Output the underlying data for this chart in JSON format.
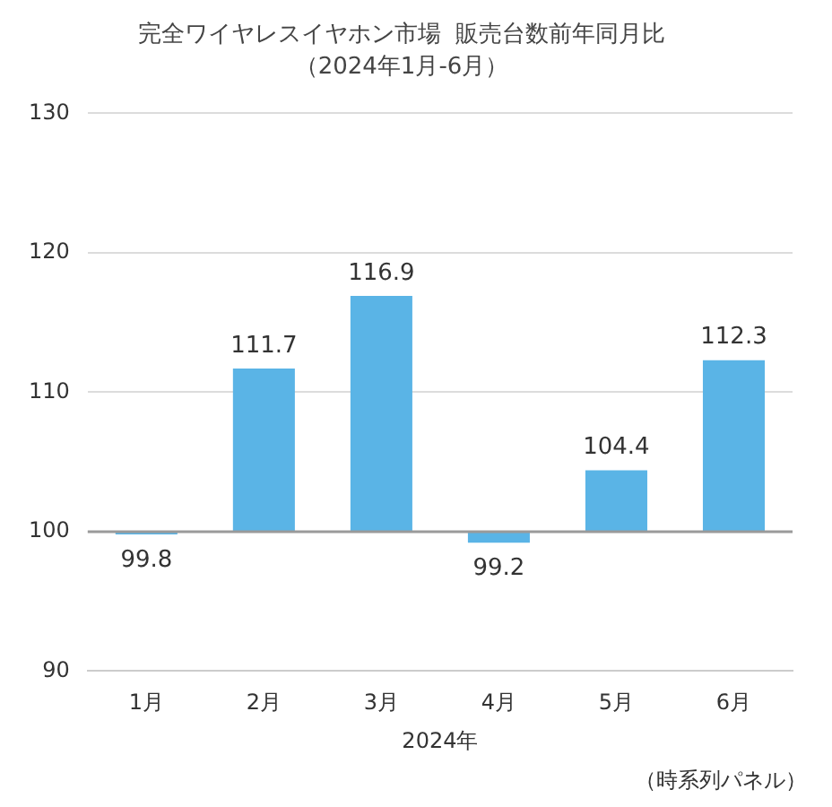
{
  "chart_data": {
    "type": "bar",
    "title": "完全ワイヤレスイヤホン市場  販売台数前年同月比",
    "subtitle": "（2024年1月-6月）",
    "xlabel": "2024年",
    "categories": [
      "1月",
      "2月",
      "3月",
      "4月",
      "5月",
      "6月"
    ],
    "base": [
      100,
      100,
      100,
      100,
      100,
      100
    ],
    "values": [
      -0.2,
      11.7,
      16.9,
      -0.8,
      4.4,
      12.3
    ],
    "value_labels": [
      "99.8",
      "111.7",
      "116.9",
      "99.2",
      "104.4",
      "112.3"
    ],
    "color": "#5ab4e6",
    "ylim": [
      90,
      130
    ],
    "yticks": [
      90,
      100,
      110,
      120,
      130
    ],
    "ref_lines": [
      {
        "axis": "y",
        "value": 100,
        "color": "#9a9a9a"
      }
    ],
    "grid": "y",
    "legend": false,
    "annotations": [
      "（時系列パネル）"
    ]
  }
}
